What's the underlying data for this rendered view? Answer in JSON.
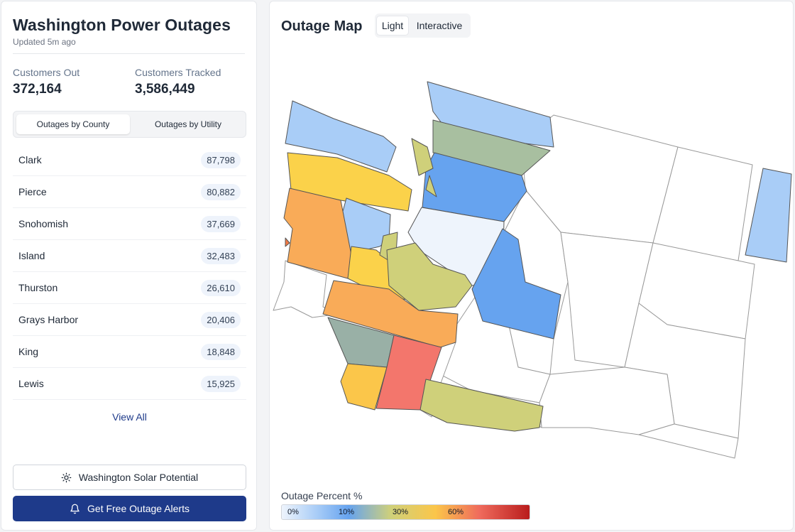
{
  "header": {
    "title": "Washington Power Outages",
    "updated": "Updated 5m ago"
  },
  "stats": [
    {
      "label": "Customers Out",
      "value": "372,164"
    },
    {
      "label": "Customers Tracked",
      "value": "3,586,449"
    }
  ],
  "tabs": [
    {
      "label": "Outages by County",
      "active": true
    },
    {
      "label": "Outages by Utility",
      "active": false
    }
  ],
  "counties": [
    {
      "name": "Clark",
      "count": "87,798"
    },
    {
      "name": "Pierce",
      "count": "80,882"
    },
    {
      "name": "Snohomish",
      "count": "37,669"
    },
    {
      "name": "Island",
      "count": "32,483"
    },
    {
      "name": "Thurston",
      "count": "26,610"
    },
    {
      "name": "Grays Harbor",
      "count": "20,406"
    },
    {
      "name": "King",
      "count": "18,848"
    },
    {
      "name": "Lewis",
      "count": "15,925"
    }
  ],
  "view_all": "View All",
  "buttons": {
    "solar": "Washington Solar Potential",
    "alerts": "Get Free Outage Alerts"
  },
  "map": {
    "title": "Outage Map",
    "modes": [
      {
        "label": "Light",
        "active": true
      },
      {
        "label": "Interactive",
        "active": false
      }
    ],
    "legend": {
      "title": "Outage Percent %",
      "ticks": [
        "0%",
        "10%",
        "30%",
        "60%"
      ]
    }
  },
  "colors": {
    "accent": "#1e3a8a",
    "c0": "#eef4fc",
    "c10": "#a9cdf7",
    "c15": "#66a3ef",
    "c25": "#a8bfa0",
    "c30": "#cfd07a",
    "c40": "#fbd24a",
    "c50": "#f9ab58",
    "c60": "#f3766c"
  }
}
